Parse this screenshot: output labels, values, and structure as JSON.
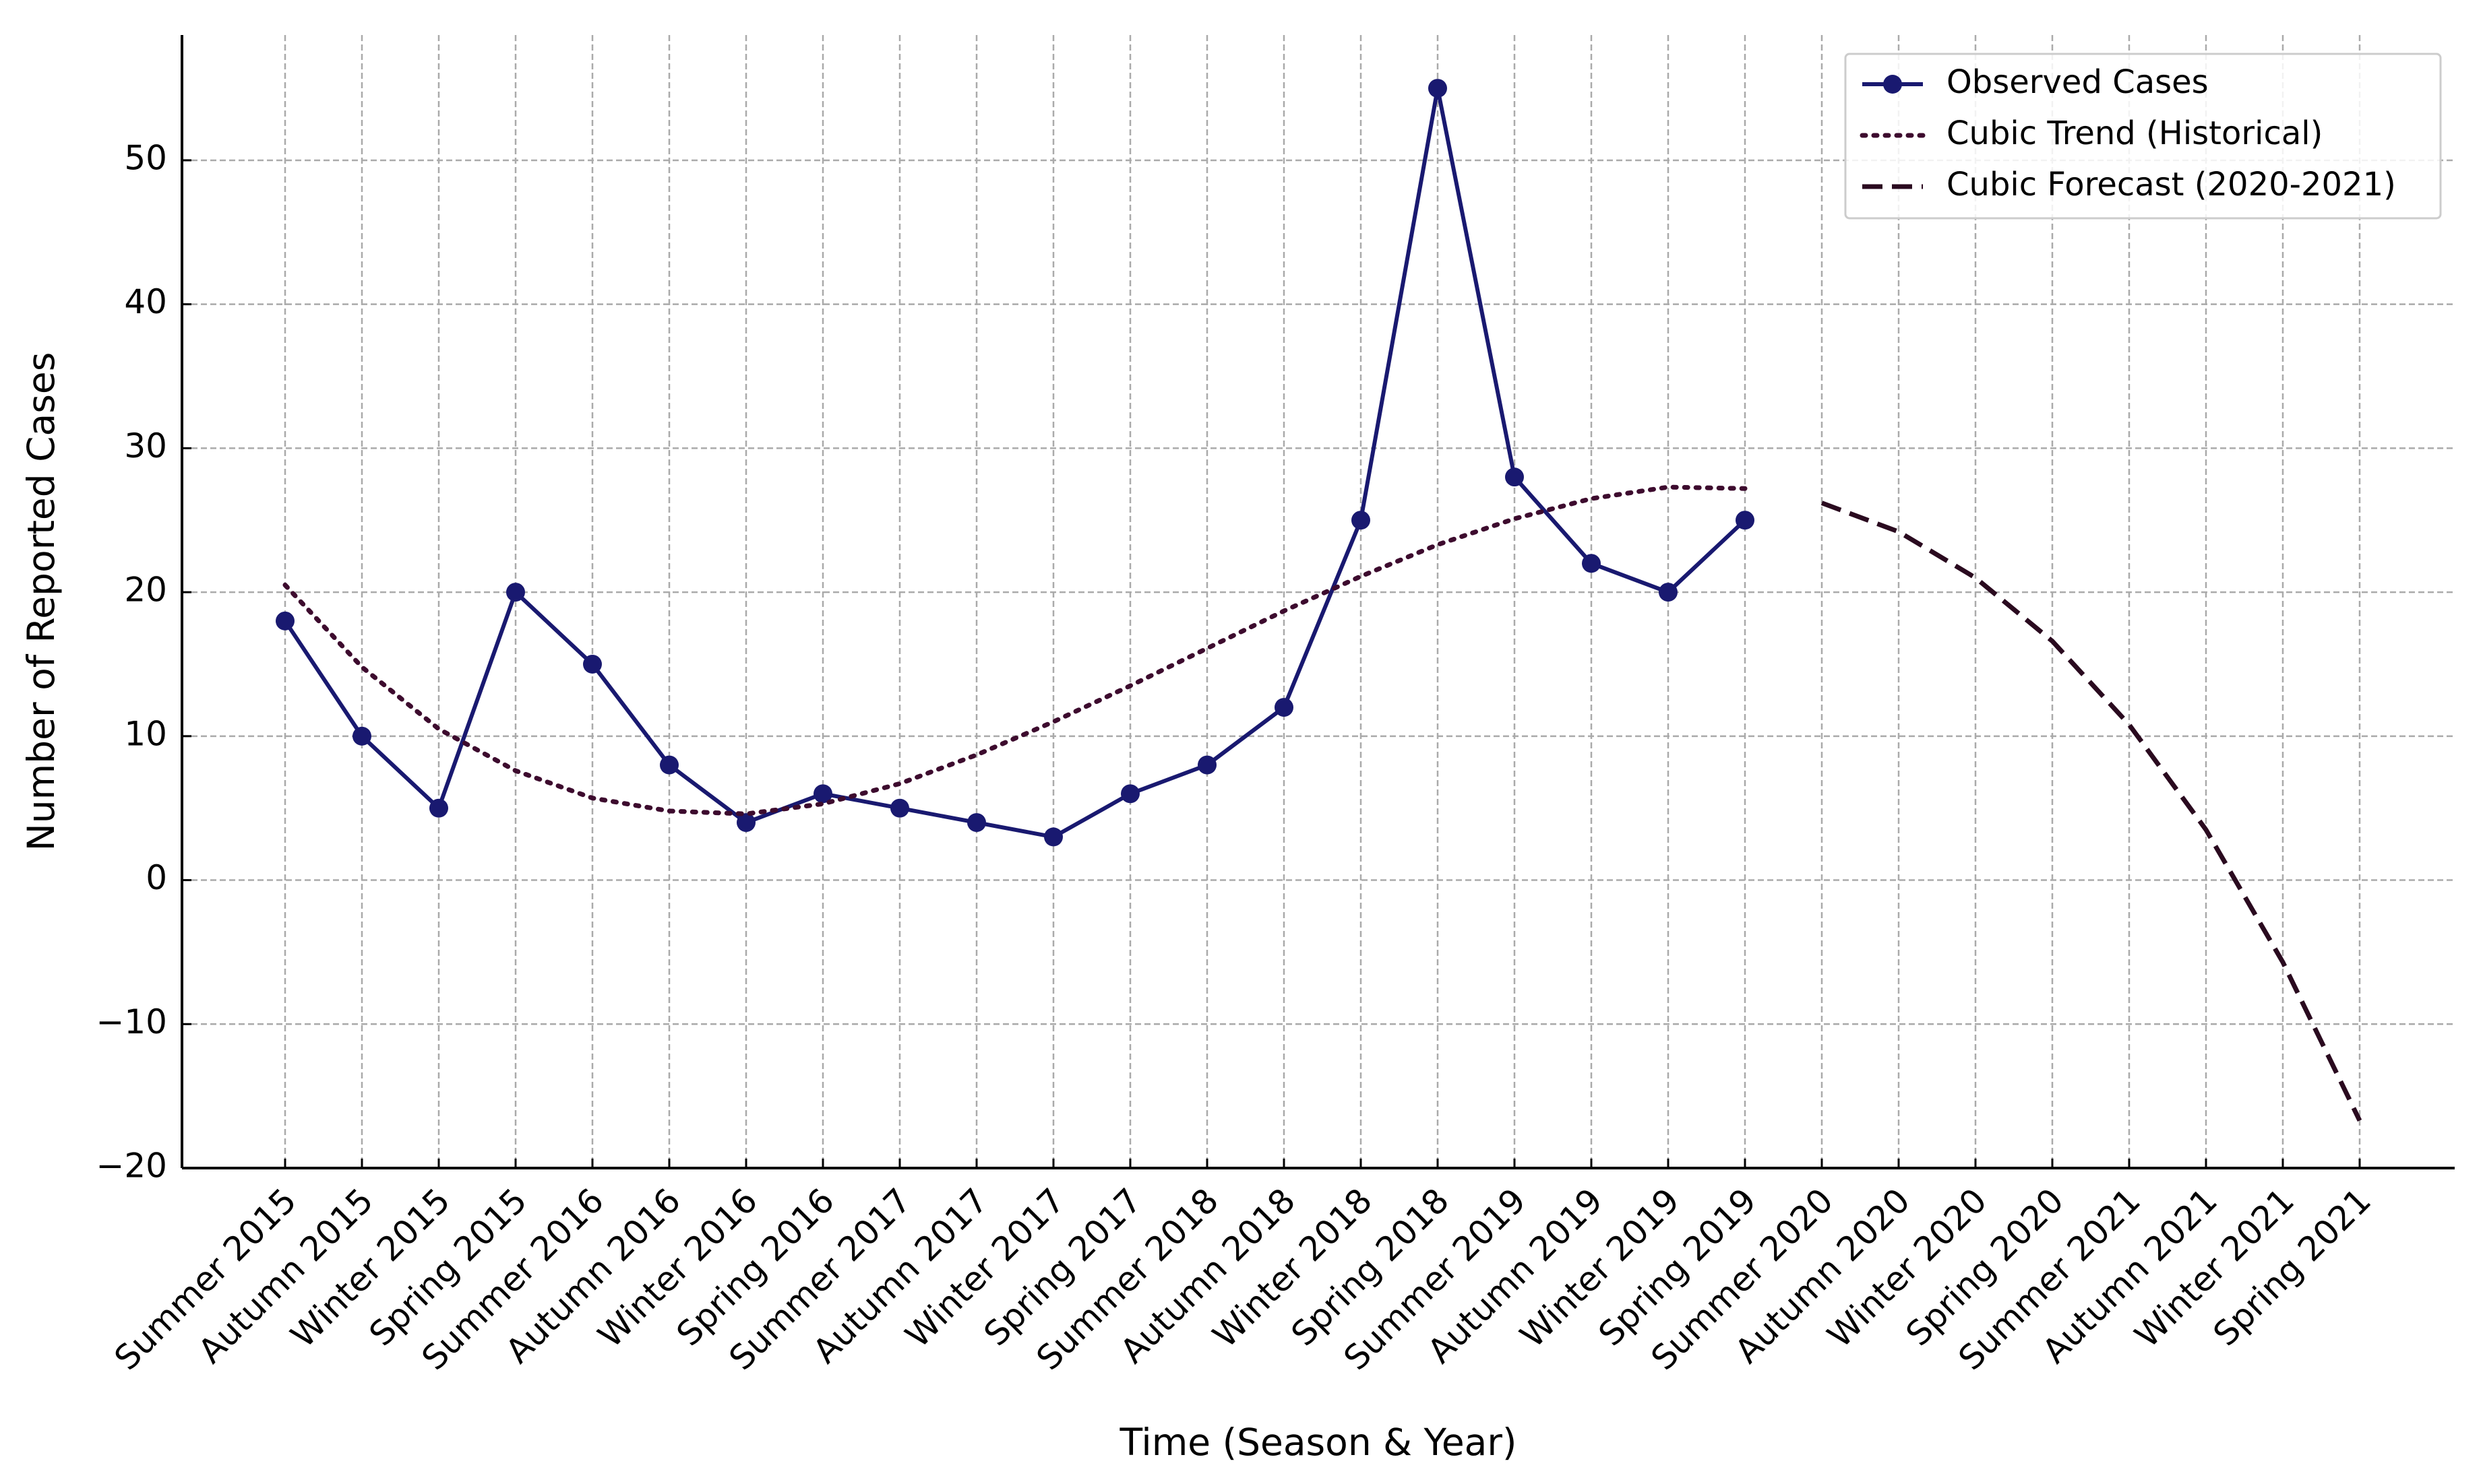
{
  "chart_data": {
    "type": "line",
    "x_label": "Time (Season & Year)",
    "y_label": "Number of Reported Cases",
    "categories": [
      "Summer 2015",
      "Autumn 2015",
      "Winter 2015",
      "Spring 2015",
      "Summer 2016",
      "Autumn 2016",
      "Winter 2016",
      "Spring 2016",
      "Summer 2017",
      "Autumn 2017",
      "Winter 2017",
      "Spring 2017",
      "Summer 2018",
      "Autumn 2018",
      "Winter 2018",
      "Spring 2018",
      "Summer 2019",
      "Autumn 2019",
      "Winter 2019",
      "Spring 2019",
      "Summer 2020",
      "Autumn 2020",
      "Winter 2020",
      "Spring 2020",
      "Summer 2021",
      "Autumn 2021",
      "Winter 2021",
      "Spring 2021"
    ],
    "series": [
      {
        "name": "Observed Cases",
        "color": "#191970",
        "style": "solid",
        "marker": true,
        "values": [
          18,
          10,
          5,
          20,
          15,
          8,
          4,
          6,
          5,
          4,
          3,
          6,
          8,
          12,
          25,
          55,
          28,
          22,
          20,
          25,
          null,
          null,
          null,
          null,
          null,
          null,
          null,
          null
        ]
      },
      {
        "name": "Cubic Trend (Historical)",
        "color": "#3d0b2e",
        "style": "dotted",
        "marker": false,
        "values": [
          20.5,
          14.8,
          10.5,
          7.6,
          5.7,
          4.8,
          4.6,
          5.3,
          6.7,
          8.7,
          11,
          13.5,
          16.1,
          18.7,
          21.1,
          23.3,
          25.1,
          26.5,
          27.3,
          27.2,
          null,
          null,
          null,
          null,
          null,
          null,
          null,
          null
        ]
      },
      {
        "name": "Cubic Forecast (2020-2021)",
        "color": "#2a0a1f",
        "style": "dashed",
        "marker": false,
        "values": [
          null,
          null,
          null,
          null,
          null,
          null,
          null,
          null,
          null,
          null,
          null,
          null,
          null,
          null,
          null,
          null,
          null,
          null,
          null,
          null,
          26.2,
          24.2,
          21,
          16.6,
          10.8,
          3.5,
          -5.7,
          -16.7
        ]
      }
    ],
    "ylim": [
      -20,
      58.7
    ],
    "yticks": [
      {
        "value": -20,
        "label": "−20"
      },
      {
        "value": -10,
        "label": "−10"
      },
      0,
      10,
      20,
      30,
      40,
      50
    ],
    "grid": true,
    "legend": "upper right"
  }
}
